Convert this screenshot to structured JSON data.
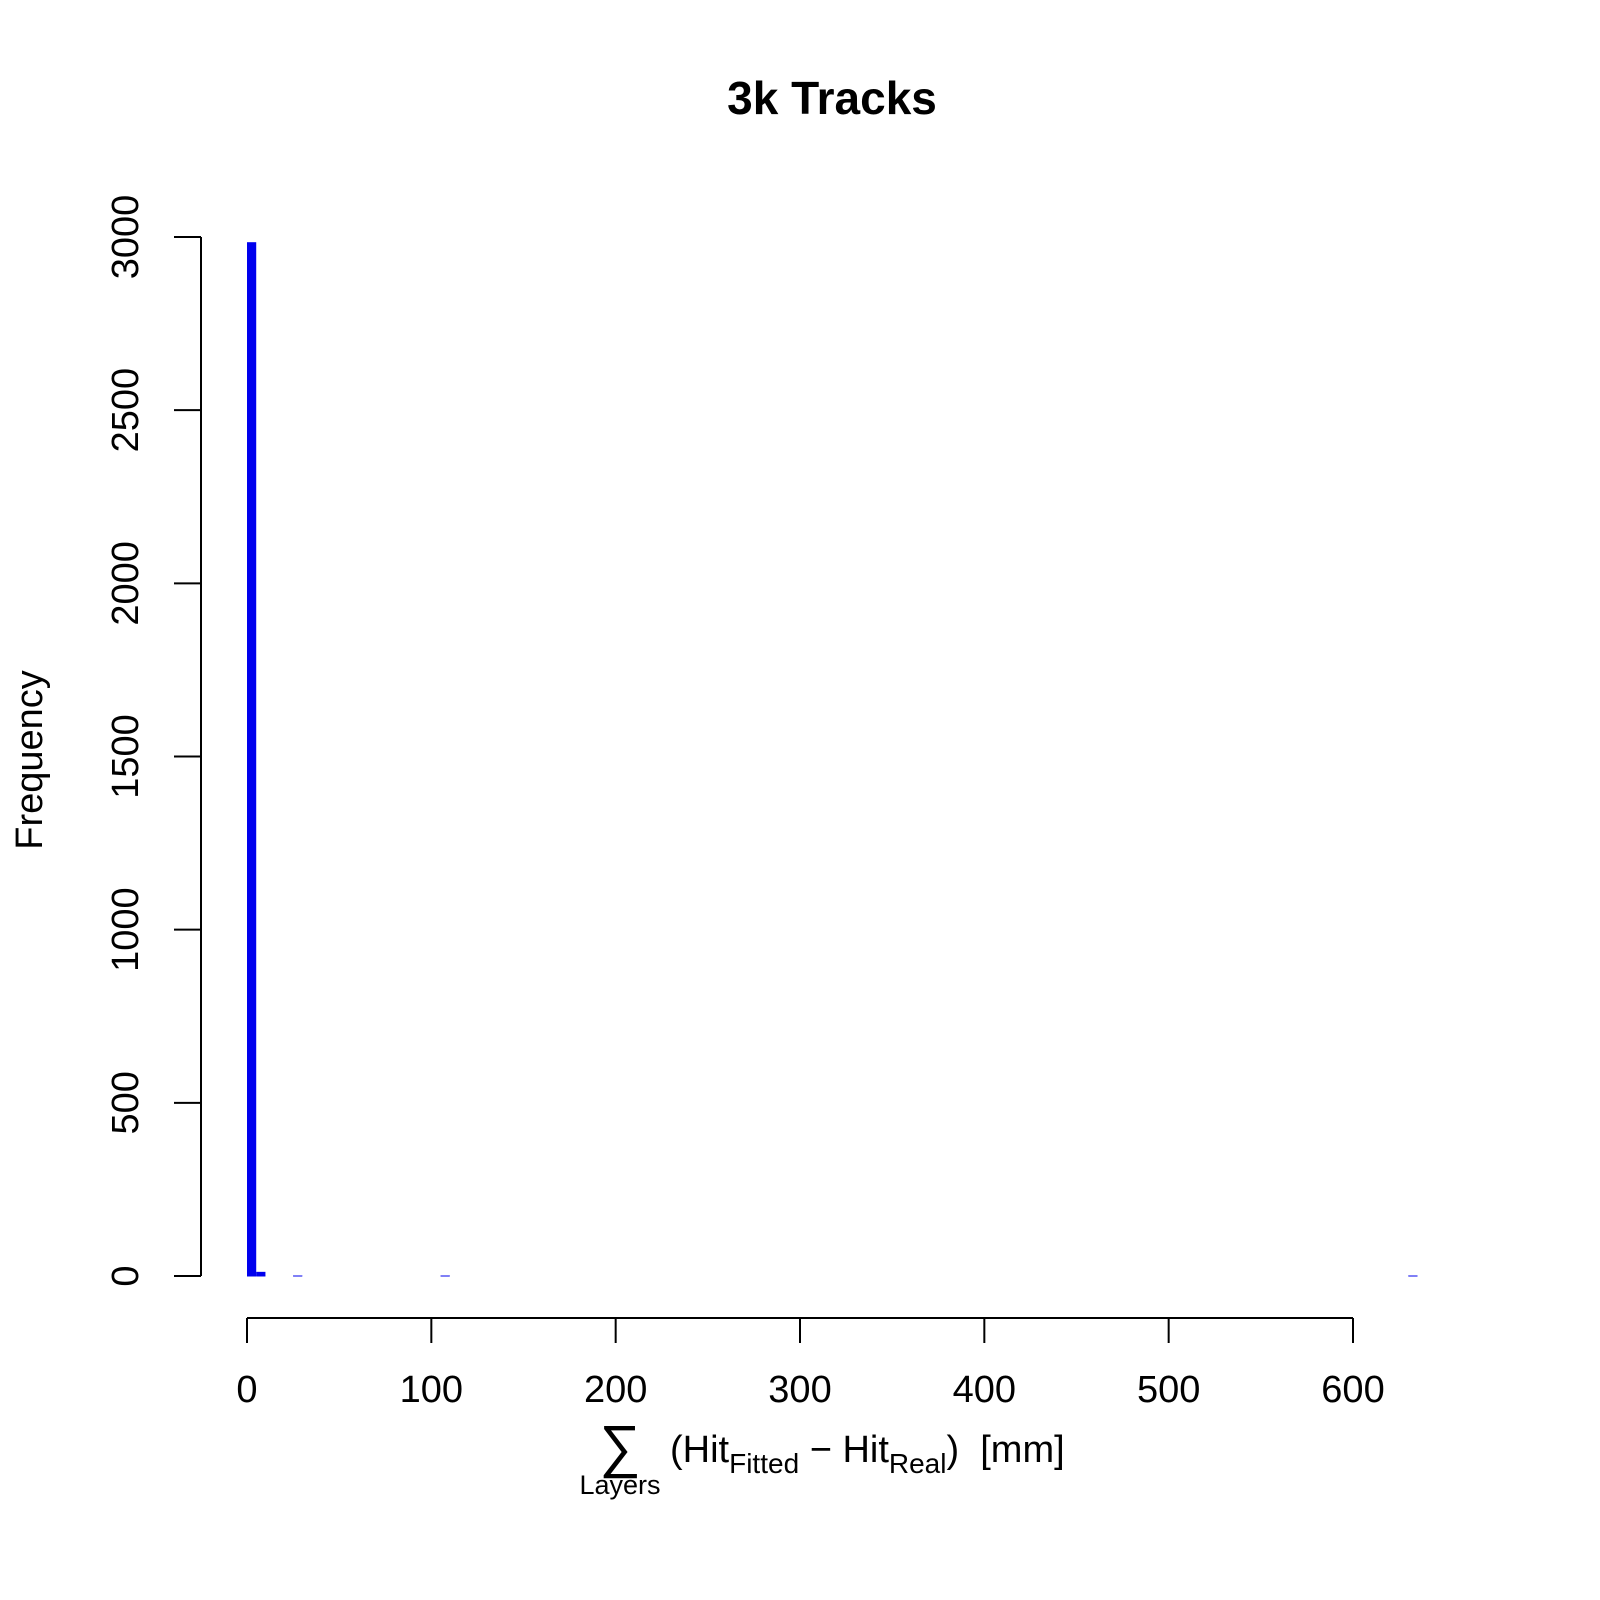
{
  "chart_data": {
    "type": "histogram",
    "title": "3k Tracks",
    "y_label": "Frequency",
    "x_label": {
      "symbol": "∑",
      "under": "Layers",
      "parts": [
        "(Hit",
        "Fitted",
        " − Hit",
        "Real",
        ")  [mm]"
      ]
    },
    "color": "#0000ee",
    "bins": [
      0,
      5,
      10,
      15,
      20,
      25,
      30,
      35,
      40,
      45,
      50,
      55,
      60,
      65,
      70,
      75,
      80,
      85,
      90,
      95,
      100,
      105,
      110,
      115,
      120,
      125,
      130,
      135,
      140,
      145,
      150,
      155,
      160,
      165,
      170,
      175,
      180,
      185,
      190,
      195,
      200,
      205,
      210,
      215,
      220,
      225,
      230,
      235,
      240,
      245,
      250,
      255,
      260,
      265,
      270,
      275,
      280,
      285,
      290,
      295,
      300,
      305,
      310,
      315,
      320,
      325,
      330,
      335,
      340,
      345,
      350,
      355,
      360,
      365,
      370,
      375,
      380,
      385,
      390,
      395,
      400,
      405,
      410,
      415,
      420,
      425,
      430,
      435,
      440,
      445,
      450,
      455,
      460,
      465,
      470,
      475,
      480,
      485,
      490,
      495,
      500,
      505,
      510,
      515,
      520,
      525,
      530,
      535,
      540,
      545,
      550,
      555,
      560,
      565,
      570,
      575,
      580,
      585,
      590,
      595,
      600,
      605,
      610,
      615,
      620,
      625,
      630,
      635
    ],
    "values": [
      2985,
      12,
      0,
      0,
      0,
      1,
      0,
      0,
      0,
      0,
      0,
      0,
      0,
      0,
      0,
      0,
      0,
      0,
      0,
      0,
      0,
      1,
      0,
      0,
      0,
      0,
      0,
      0,
      0,
      0,
      0,
      0,
      0,
      0,
      0,
      0,
      0,
      0,
      0,
      0,
      0,
      0,
      0,
      0,
      0,
      0,
      0,
      0,
      0,
      0,
      0,
      0,
      0,
      0,
      0,
      0,
      0,
      0,
      0,
      0,
      0,
      0,
      0,
      0,
      0,
      0,
      0,
      0,
      0,
      0,
      0,
      0,
      0,
      0,
      0,
      0,
      0,
      0,
      0,
      0,
      0,
      0,
      0,
      0,
      0,
      0,
      0,
      0,
      0,
      0,
      0,
      0,
      0,
      0,
      0,
      0,
      0,
      0,
      0,
      0,
      0,
      0,
      0,
      0,
      0,
      0,
      0,
      0,
      0,
      0,
      0,
      0,
      0,
      0,
      0,
      0,
      0,
      0,
      0,
      0,
      0,
      0,
      0,
      0,
      0,
      0,
      1
    ],
    "xlim": [
      0,
      600
    ],
    "xticks": [
      0,
      100,
      200,
      300,
      400,
      500,
      600
    ],
    "ylim": [
      0,
      3000
    ],
    "yticks": [
      0,
      500,
      1000,
      1500,
      2000,
      2500,
      3000
    ]
  }
}
